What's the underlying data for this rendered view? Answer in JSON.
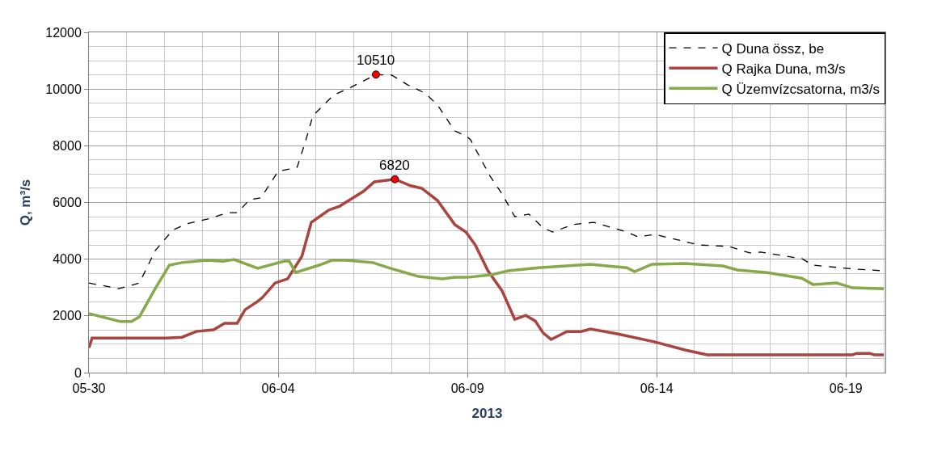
{
  "chart_data": {
    "type": "line",
    "xlabel": "2013",
    "ylabel": "Q, m³/s",
    "xlim": [
      "2013-05-30",
      "2013-06-20T01:00"
    ],
    "ylim": [
      0,
      12000
    ],
    "xticks": [
      {
        "value": "2013-05-30",
        "label": "05-30"
      },
      {
        "value": "2013-06-04",
        "label": "06-04"
      },
      {
        "value": "2013-06-09",
        "label": "06-09"
      },
      {
        "value": "2013-06-14",
        "label": "06-14"
      },
      {
        "value": "2013-06-19",
        "label": "06-19"
      }
    ],
    "yticks": [
      0,
      2000,
      4000,
      6000,
      8000,
      10000,
      12000
    ],
    "grid": true,
    "legend": "top right",
    "marker": "none",
    "series": [
      {
        "name": "Q Duna össz, be",
        "color": "#000000",
        "line_style": "dashed",
        "x": [
          "2013-05-30T00:00",
          "2013-05-30T19:00",
          "2013-05-31T08:00",
          "2013-05-31T18:00",
          "2013-06-01T05:00",
          "2013-06-01T14:00",
          "2013-06-02T05:00",
          "2013-06-02T16:00",
          "2013-06-02T22:00",
          "2013-06-03T06:00",
          "2013-06-03T13:00",
          "2013-06-04T00:00",
          "2013-06-04T12:00",
          "2013-06-04T17:00",
          "2013-06-04T22:00",
          "2013-06-05T11:00",
          "2013-06-05T22:00",
          "2013-06-06T14:00",
          "2013-06-07T00:00",
          "2013-06-07T10:00",
          "2013-06-07T21:00",
          "2013-06-08T05:00",
          "2013-06-08T16:00",
          "2013-06-08T23:00",
          "2013-06-09T02:00",
          "2013-06-09T14:00",
          "2013-06-09T22:00",
          "2013-06-10T06:00",
          "2013-06-10T15:00",
          "2013-06-11T00:00",
          "2013-06-11T06:00",
          "2013-06-11T19:00",
          "2013-06-12T08:00",
          "2013-06-13T05:00",
          "2013-06-13T12:00",
          "2013-06-13T23:00",
          "2013-06-15T03:00",
          "2013-06-15T22:00",
          "2013-06-16T11:00",
          "2013-06-16T18:00",
          "2013-06-17T20:00",
          "2013-06-18T03:00",
          "2013-06-19T00:00",
          "2013-06-19T06:00",
          "2013-06-20T00:00"
        ],
        "values": [
          3160,
          2960,
          3160,
          4300,
          5020,
          5250,
          5440,
          5640,
          5640,
          6100,
          6160,
          7100,
          7240,
          8100,
          9060,
          9780,
          10060,
          10510,
          10490,
          10150,
          9860,
          9440,
          8520,
          8350,
          8210,
          6960,
          6300,
          5500,
          5590,
          5100,
          4960,
          5220,
          5300,
          4960,
          4790,
          4870,
          4500,
          4450,
          4220,
          4250,
          4020,
          3790,
          3680,
          3650,
          3590
        ]
      },
      {
        "name": "Q Rajka Duna, m3/s",
        "color": "#a9443f",
        "line_style": "solid",
        "x": [
          "2013-05-30T00:00",
          "2013-05-30T02:00",
          "2013-06-01T01:00",
          "2013-06-01T11:00",
          "2013-06-01T20:00",
          "2013-06-02T07:00",
          "2013-06-02T14:00",
          "2013-06-02T22:00",
          "2013-06-03T03:00",
          "2013-06-03T11:00",
          "2013-06-03T14:00",
          "2013-06-03T22:00",
          "2013-06-04T06:00",
          "2013-06-04T15:00",
          "2013-06-04T21:00",
          "2013-06-05T08:00",
          "2013-06-05T15:00",
          "2013-06-06T06:00",
          "2013-06-06T13:00",
          "2013-06-07T02:00",
          "2013-06-07T12:00",
          "2013-06-07T19:00",
          "2013-06-08T05:00",
          "2013-06-08T16:00",
          "2013-06-08T23:00",
          "2013-06-09T05:00",
          "2013-06-09T13:00",
          "2013-06-09T22:00",
          "2013-06-10T06:00",
          "2013-06-10T13:00",
          "2013-06-10T19:00",
          "2013-06-11T00:00",
          "2013-06-11T05:00",
          "2013-06-11T15:00",
          "2013-06-12T00:00",
          "2013-06-12T06:00",
          "2013-06-12T23:00",
          "2013-06-13T23:00",
          "2013-06-14T18:00",
          "2013-06-15T08:00",
          "2013-06-19T04:00",
          "2013-06-19T07:00",
          "2013-06-19T15:00",
          "2013-06-19T18:00",
          "2013-06-20T00:00"
        ],
        "values": [
          880,
          1220,
          1220,
          1250,
          1450,
          1510,
          1740,
          1740,
          2220,
          2510,
          2650,
          3160,
          3310,
          4100,
          5300,
          5730,
          5870,
          6390,
          6730,
          6820,
          6590,
          6500,
          6070,
          5220,
          4960,
          4500,
          3590,
          2880,
          1880,
          2020,
          1820,
          1400,
          1170,
          1450,
          1450,
          1540,
          1370,
          1080,
          800,
          630,
          630,
          680,
          680,
          630,
          630
        ]
      },
      {
        "name": "Q Üzemvízcsatorna, m3/s",
        "color": "#86a94a",
        "line_style": "solid",
        "x": [
          "2013-05-30T00:00",
          "2013-05-30T20:00",
          "2013-05-31T03:00",
          "2013-05-31T08:00",
          "2013-05-31T18:00",
          "2013-06-01T03:00",
          "2013-06-01T11:00",
          "2013-06-02T03:00",
          "2013-06-02T13:00",
          "2013-06-02T20:00",
          "2013-06-03T11:00",
          "2013-06-04T04:00",
          "2013-06-04T07:00",
          "2013-06-04T11:00",
          "2013-06-05T02:00",
          "2013-06-05T10:00",
          "2013-06-05T19:00",
          "2013-06-06T12:00",
          "2013-06-06T23:00",
          "2013-06-07T17:00",
          "2013-06-08T08:00",
          "2013-06-08T16:00",
          "2013-06-09T00:00",
          "2013-06-09T15:00",
          "2013-06-10T02:00",
          "2013-06-10T21:00",
          "2013-06-12T06:00",
          "2013-06-13T05:00",
          "2013-06-13T10:00",
          "2013-06-13T21:00",
          "2013-06-14T18:00",
          "2013-06-15T18:00",
          "2013-06-16T03:00",
          "2013-06-16T22:00",
          "2013-06-17T20:00",
          "2013-06-18T03:00",
          "2013-06-18T18:00",
          "2013-06-19T04:00",
          "2013-06-20T00:00"
        ],
        "values": [
          2080,
          1800,
          1800,
          1970,
          2960,
          3790,
          3880,
          3960,
          3930,
          3990,
          3680,
          3930,
          3930,
          3530,
          3790,
          3960,
          3960,
          3880,
          3680,
          3390,
          3310,
          3360,
          3360,
          3450,
          3590,
          3700,
          3820,
          3700,
          3560,
          3820,
          3850,
          3760,
          3620,
          3530,
          3330,
          3110,
          3160,
          2990,
          2960
        ]
      }
    ],
    "annotations": [
      {
        "text": "10510",
        "x": "2013-06-06T14:00",
        "y": 10510
      },
      {
        "text": "6820",
        "x": "2013-06-07T02:00",
        "y": 6820
      }
    ]
  }
}
